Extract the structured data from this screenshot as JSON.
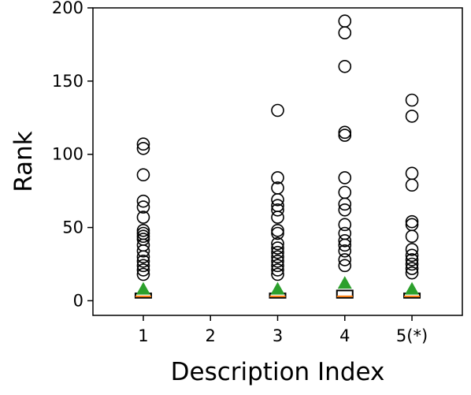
{
  "chart_data": {
    "type": "box",
    "xlabel": "Description Index",
    "ylabel": "Rank",
    "categories": [
      "1",
      "2",
      "3",
      "4",
      "5(*)"
    ],
    "ylim": [
      -10,
      200
    ],
    "yticks": [
      0,
      50,
      100,
      150,
      200
    ],
    "grid": false,
    "colors": {
      "median": "#ff7f0e",
      "mean_marker": "#2ca02c",
      "outlier": "#000000",
      "box": "#000000"
    },
    "series": [
      {
        "category": "1",
        "q1": 2,
        "median": 3,
        "q3": 5,
        "mean": 8,
        "outliers": [
          107,
          104,
          86,
          68,
          64,
          57,
          48,
          46,
          44,
          42,
          38,
          34,
          30,
          27,
          24,
          21,
          18
        ]
      },
      {
        "category": "2",
        "q1": null,
        "median": null,
        "q3": null,
        "mean": null,
        "outliers": []
      },
      {
        "category": "3",
        "q1": 2,
        "median": 3,
        "q3": 5,
        "mean": 8,
        "outliers": [
          130,
          84,
          77,
          69,
          65,
          62,
          57,
          48,
          46,
          39,
          36,
          33,
          30,
          27,
          24,
          21,
          18
        ]
      },
      {
        "category": "4",
        "q1": 2,
        "median": 3,
        "q3": 7,
        "mean": 12,
        "outliers": [
          191,
          183,
          160,
          115,
          113,
          84,
          74,
          66,
          62,
          52,
          46,
          41,
          38,
          34,
          28,
          24
        ]
      },
      {
        "category": "5(*)",
        "q1": 2,
        "median": 3,
        "q3": 5,
        "mean": 8,
        "outliers": [
          137,
          126,
          87,
          79,
          54,
          52,
          44,
          35,
          31,
          28,
          25,
          22,
          19
        ]
      }
    ]
  }
}
